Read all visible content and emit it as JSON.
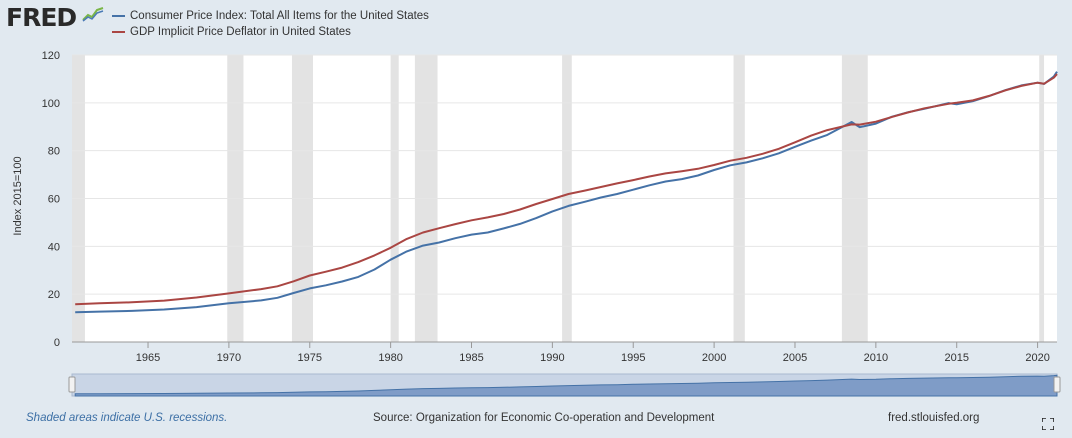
{
  "brand": {
    "logo_text": "FRED",
    "logo_icon": "line-graph-icon"
  },
  "legend": {
    "items": [
      {
        "label": "Consumer Price Index: Total All Items for the United States",
        "color": "#4572a7"
      },
      {
        "label": "GDP Implicit Price Deflator in United States",
        "color": "#aa4643"
      }
    ]
  },
  "chart_data": {
    "type": "line",
    "title": "",
    "xlabel": "",
    "ylabel": "Index 2015=100",
    "xlim": [
      1960.3,
      2021.2
    ],
    "ylim": [
      0,
      120
    ],
    "yticks": [
      0,
      20,
      40,
      60,
      80,
      100,
      120
    ],
    "xticks": [
      1965,
      1970,
      1975,
      1980,
      1985,
      1990,
      1995,
      2000,
      2005,
      2010,
      2015,
      2020
    ],
    "grid": true,
    "legend_position": "top-left",
    "recessions": [
      [
        1960.3,
        1961.1
      ],
      [
        1969.9,
        1970.9
      ],
      [
        1973.9,
        1975.2
      ],
      [
        1980.0,
        1980.5
      ],
      [
        1981.5,
        1982.9
      ],
      [
        1990.6,
        1991.2
      ],
      [
        2001.2,
        2001.9
      ],
      [
        2007.9,
        2009.5
      ],
      [
        2020.1,
        2020.4
      ]
    ],
    "series": [
      {
        "name": "Consumer Price Index: Total All Items for the United States",
        "color": "#4572a7",
        "x": [
          1960.5,
          1962,
          1964,
          1966,
          1968,
          1970,
          1972,
          1973,
          1974,
          1975,
          1976,
          1977,
          1978,
          1979,
          1980,
          1981,
          1982,
          1983,
          1984,
          1985,
          1986,
          1987,
          1988,
          1989,
          1990,
          1991,
          1992,
          1993,
          1994,
          1995,
          1996,
          1997,
          1998,
          1999,
          2000,
          2001,
          2002,
          2003,
          2004,
          2005,
          2006,
          2007,
          2008.5,
          2009,
          2010,
          2011,
          2012,
          2013,
          2014.5,
          2015,
          2016,
          2017,
          2018,
          2019,
          2020,
          2020.4,
          2021,
          2021.2
        ],
        "values": [
          12.4,
          12.7,
          13.0,
          13.6,
          14.6,
          16.2,
          17.4,
          18.5,
          20.5,
          22.4,
          23.7,
          25.3,
          27.2,
          30.3,
          34.4,
          37.9,
          40.3,
          41.6,
          43.4,
          44.9,
          45.8,
          47.5,
          49.4,
          51.8,
          54.6,
          56.9,
          58.6,
          60.4,
          61.9,
          63.7,
          65.5,
          67.1,
          68.1,
          69.6,
          71.9,
          73.9,
          75.1,
          76.8,
          78.9,
          81.6,
          84.2,
          86.6,
          92.0,
          89.8,
          91.3,
          94.2,
          96.1,
          97.5,
          99.9,
          99.4,
          100.7,
          102.8,
          105.3,
          107.3,
          108.4,
          107.9,
          111.0,
          113.0
        ]
      },
      {
        "name": "GDP Implicit Price Deflator in United States",
        "color": "#aa4643",
        "x": [
          1960.5,
          1962,
          1964,
          1966,
          1968,
          1970,
          1972,
          1973,
          1974,
          1975,
          1976,
          1977,
          1978,
          1979,
          1980,
          1981,
          1982,
          1983,
          1984,
          1985,
          1986,
          1987,
          1988,
          1989,
          1990,
          1991,
          1992,
          1993,
          1994,
          1995,
          1996,
          1997,
          1998,
          1999,
          2000,
          2001,
          2002,
          2003,
          2004,
          2005,
          2006,
          2007,
          2008.5,
          2009,
          2010,
          2011,
          2012,
          2013,
          2014.5,
          2015,
          2016,
          2017,
          2018,
          2019,
          2020,
          2020.4,
          2021,
          2021.2
        ],
        "values": [
          15.8,
          16.2,
          16.6,
          17.3,
          18.6,
          20.3,
          22.1,
          23.3,
          25.4,
          27.8,
          29.4,
          31.1,
          33.4,
          36.2,
          39.4,
          43.1,
          45.8,
          47.6,
          49.3,
          50.9,
          52.1,
          53.5,
          55.4,
          57.7,
          59.8,
          61.9,
          63.3,
          64.8,
          66.3,
          67.7,
          69.2,
          70.5,
          71.4,
          72.4,
          74.0,
          75.8,
          77.0,
          78.7,
          80.8,
          83.5,
          86.3,
          88.6,
          91.0,
          90.9,
          92.1,
          94.1,
          96.0,
          97.7,
          99.6,
          100.0,
          101.0,
          102.9,
          105.2,
          107.1,
          108.4,
          108.0,
          110.5,
          112.0
        ]
      }
    ]
  },
  "footer": {
    "recession_note": "Shaded areas indicate U.S. recessions.",
    "source": "Source: Organization for Economic Co-operation and Development",
    "site": "fred.stlouisfed.org"
  }
}
